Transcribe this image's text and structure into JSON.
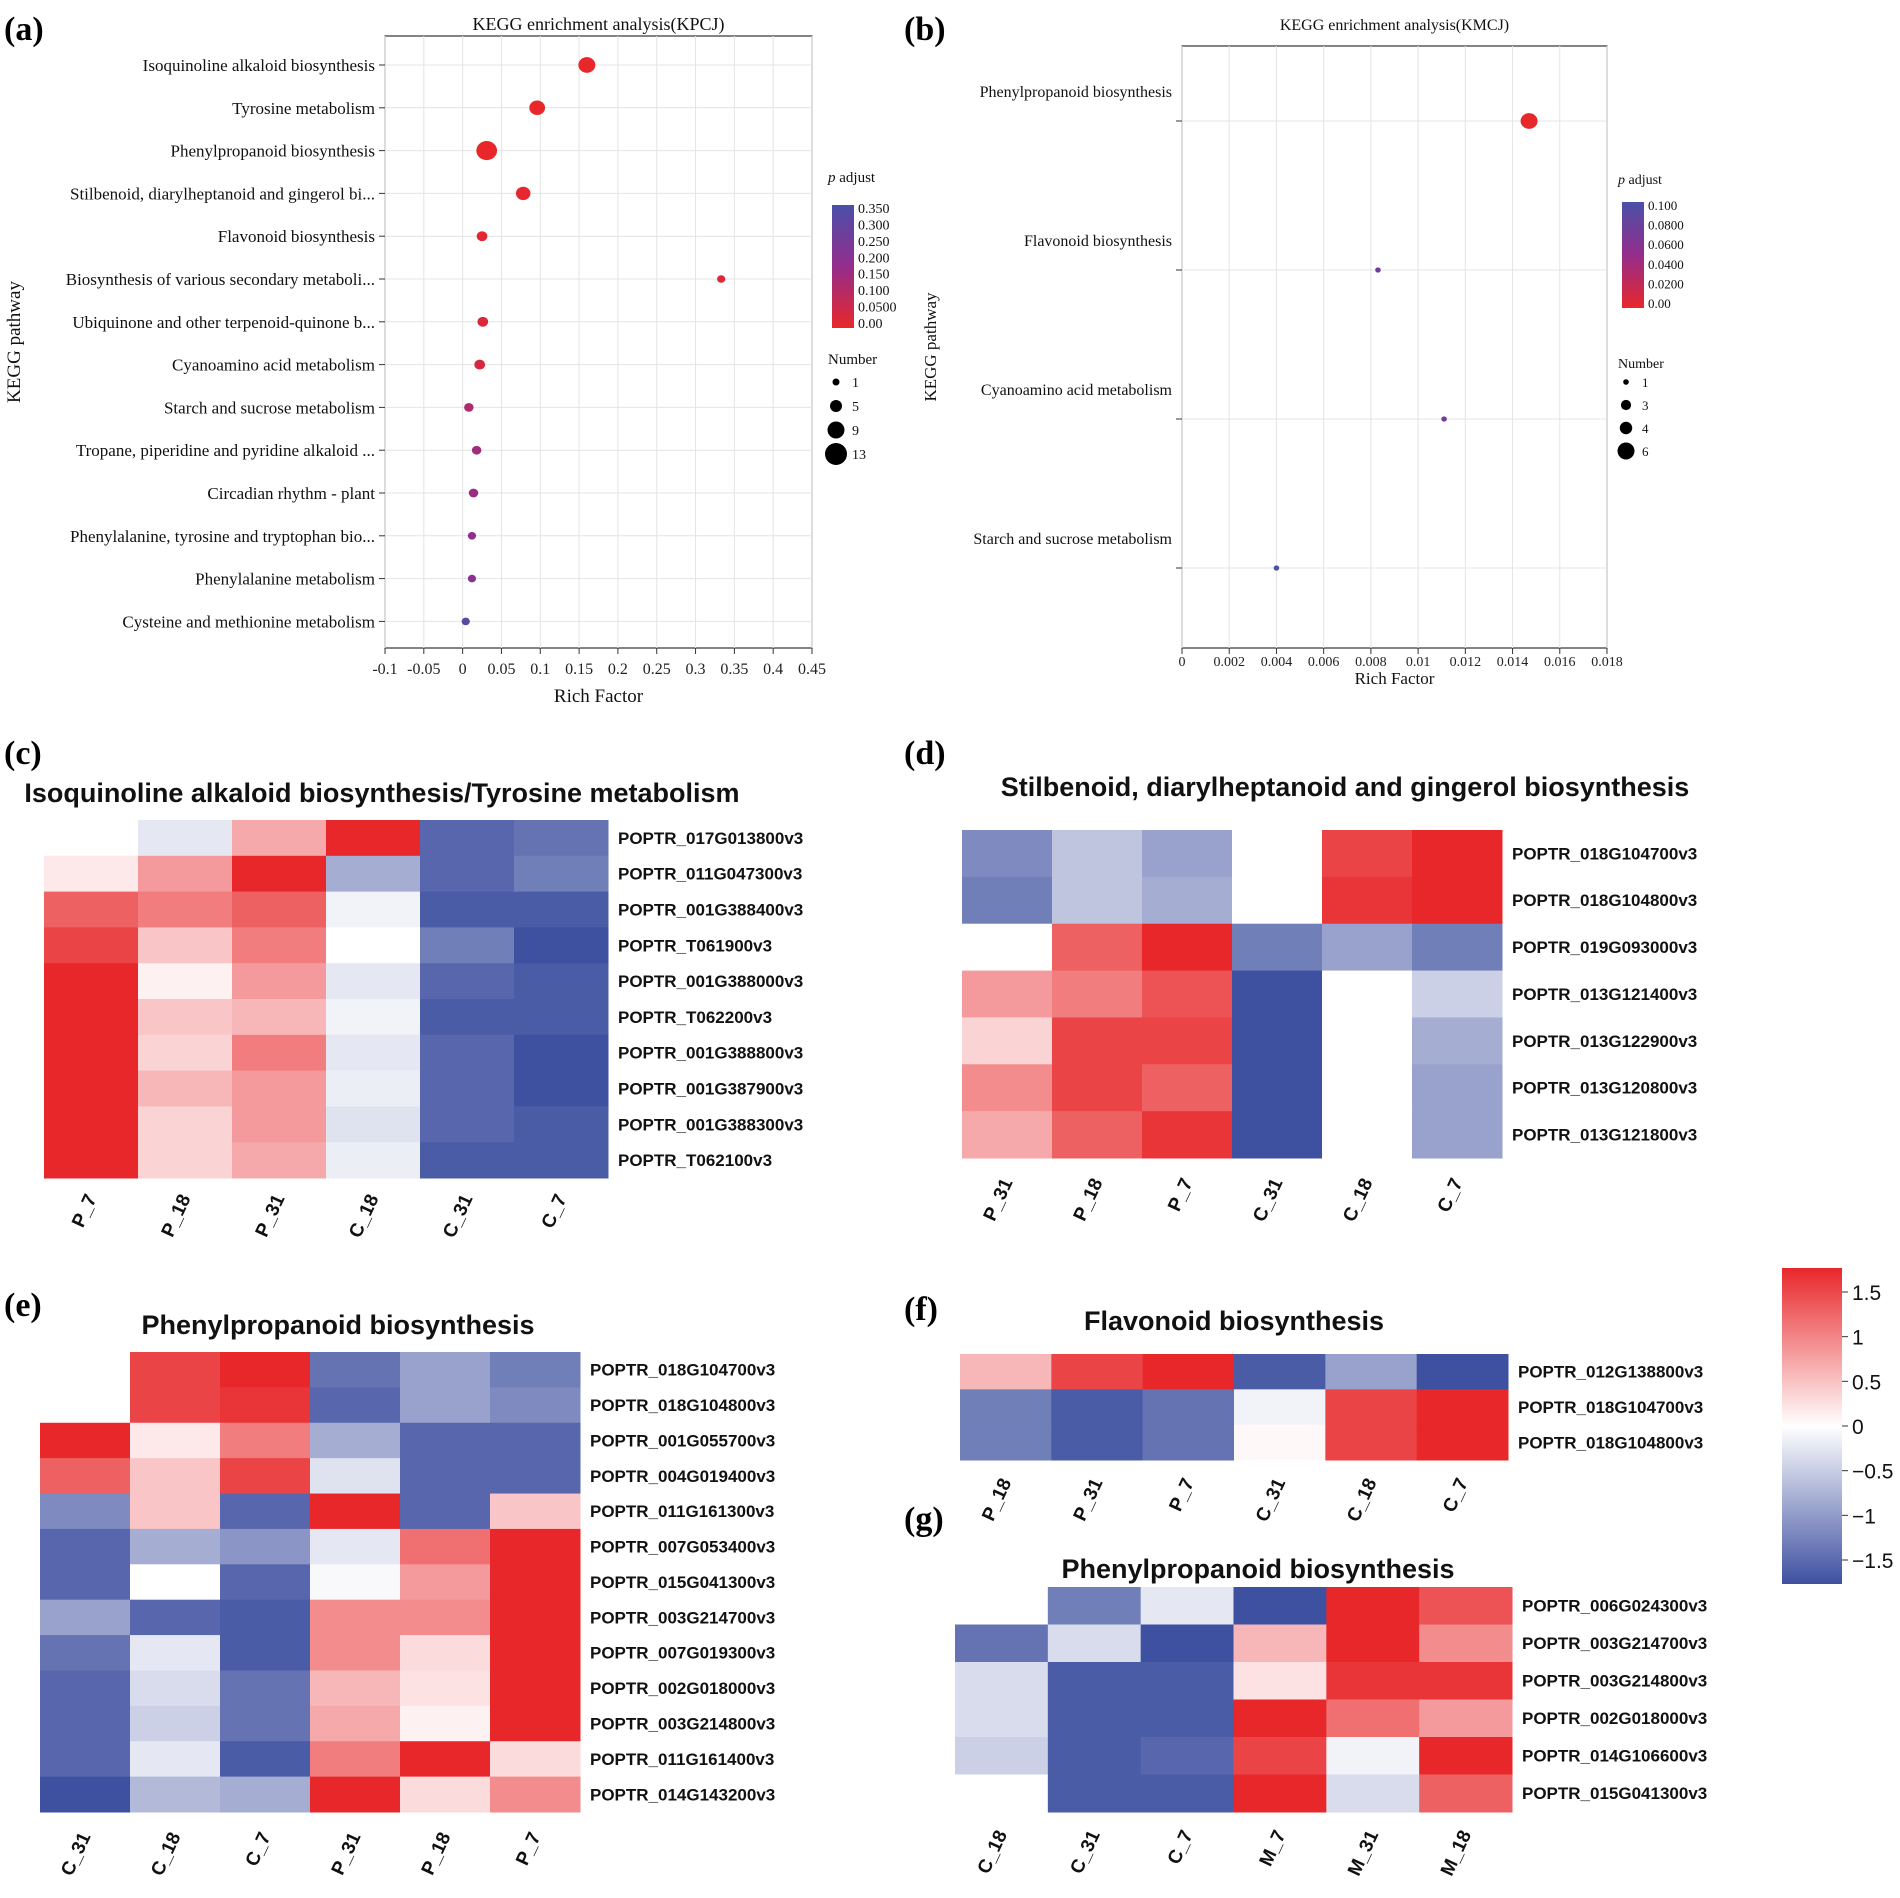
{
  "colors": {
    "red": "#e8272a",
    "white": "#ffffff",
    "blue": "#3e50a0",
    "purple": "#7a3f9e"
  },
  "panel_labels": [
    "(a)",
    "(b)",
    "(c)",
    "(d)",
    "(e)",
    "(f)",
    "(g)"
  ],
  "chart_data": [
    {
      "id": "a",
      "type": "scatter",
      "title": "KEGG enrichment analysis(KPCJ)",
      "xlabel": "Rich Factor",
      "ylabel": "KEGG pathway",
      "xlim": [
        -0.1,
        0.45
      ],
      "xticks": [
        "-0.1",
        "-0.05",
        "0",
        "0.05",
        "0.1",
        "0.15",
        "0.2",
        "0.25",
        "0.3",
        "0.35",
        "0.4",
        "0.45"
      ],
      "categories": [
        "Isoquinoline alkaloid biosynthesis",
        "Tyrosine metabolism",
        "Phenylpropanoid biosynthesis",
        "Stilbenoid, diarylheptanoid and gingerol bi...",
        "Flavonoid biosynthesis",
        "Biosynthesis of various secondary metaboli...",
        "Ubiquinone and other terpenoid-quinone b...",
        "Cyanoamino acid metabolism",
        "Starch and sucrose metabolism",
        "Tropane, piperidine and pyridine alkaloid ...",
        "Circadian rhythm - plant",
        "Phenylalanine, tyrosine and tryptophan bio...",
        "Phenylalanine metabolism",
        "Cysteine and methionine metabolism"
      ],
      "x": [
        0.16,
        0.096,
        0.031,
        0.078,
        0.025,
        0.333,
        0.026,
        0.022,
        0.008,
        0.018,
        0.014,
        0.012,
        0.012,
        0.004
      ],
      "number": [
        9,
        8,
        12,
        7,
        4,
        2,
        4,
        4,
        3,
        3,
        3,
        2,
        2,
        2
      ],
      "padjust": [
        0.0,
        0.0,
        0.0,
        0.005,
        0.01,
        0.02,
        0.03,
        0.04,
        0.12,
        0.15,
        0.16,
        0.18,
        0.2,
        0.32
      ],
      "color_legend": {
        "title_italic": "p",
        "title_rest": " adjust",
        "ticks": [
          "0.350",
          "0.300",
          "0.250",
          "0.200",
          "0.150",
          "0.100",
          "0.0500",
          "0.00"
        ]
      },
      "size_legend": {
        "title": "Number",
        "labels": [
          "1",
          "5",
          "9",
          "13"
        ],
        "values": [
          1,
          5,
          9,
          13
        ]
      }
    },
    {
      "id": "b",
      "type": "scatter",
      "title": "KEGG enrichment analysis(KMCJ)",
      "xlabel": "Rich Factor",
      "ylabel": "KEGG pathway",
      "xlim": [
        0,
        0.018
      ],
      "xticks": [
        "0",
        "0.002",
        "0.004",
        "0.006",
        "0.008",
        "0.01",
        "0.012",
        "0.014",
        "0.016",
        "0.018"
      ],
      "categories": [
        "Phenylpropanoid biosynthesis",
        "Flavonoid biosynthesis",
        "Cyanoamino acid metabolism",
        "Starch and sucrose metabolism"
      ],
      "x": [
        0.0147,
        0.0083,
        0.0111,
        0.004
      ],
      "number": [
        6,
        1,
        1,
        1
      ],
      "padjust": [
        0.0,
        0.075,
        0.075,
        0.1
      ],
      "color_legend": {
        "title_italic": "p",
        "title_rest": " adjust",
        "ticks": [
          "0.100",
          "0.0800",
          "0.0600",
          "0.0400",
          "0.0200",
          "0.00"
        ]
      },
      "size_legend": {
        "title": "Number",
        "labels": [
          "1",
          "3",
          "4",
          "6"
        ],
        "values": [
          1,
          3,
          4,
          6
        ]
      }
    },
    {
      "id": "c",
      "type": "heatmap",
      "title": "Isoquinoline alkaloid biosynthesis/Tyrosine metabolism",
      "columns": [
        "P_7",
        "P_18",
        "P_31",
        "C_18",
        "C_31",
        "C_7"
      ],
      "rows": [
        "POPTR_017G013800v3",
        "POPTR_011G047300v3",
        "POPTR_001G388400v3",
        "POPTR_T061900v3",
        "POPTR_001G388000v3",
        "POPTR_T062200v3",
        "POPTR_001G388800v3",
        "POPTR_001G387900v3",
        "POPTR_001G388300v3",
        "POPTR_T062100v3"
      ],
      "values": [
        [
          0,
          -0.2,
          0.6,
          1.6,
          -1.3,
          -1.2
        ],
        [
          0.15,
          0.7,
          1.6,
          -0.7,
          -1.3,
          -1.1
        ],
        [
          1.1,
          0.9,
          1.1,
          -0.1,
          -1.4,
          -1.4
        ],
        [
          1.3,
          0.4,
          0.9,
          0,
          -1.1,
          -1.5
        ],
        [
          1.6,
          0.1,
          0.7,
          -0.2,
          -1.3,
          -1.4
        ],
        [
          1.6,
          0.4,
          0.5,
          -0.1,
          -1.4,
          -1.4
        ],
        [
          1.5,
          0.3,
          0.9,
          -0.2,
          -1.3,
          -1.5
        ],
        [
          1.5,
          0.5,
          0.7,
          -0.15,
          -1.3,
          -1.5
        ],
        [
          1.6,
          0.3,
          0.7,
          -0.25,
          -1.3,
          -1.4
        ],
        [
          1.6,
          0.3,
          0.6,
          -0.15,
          -1.4,
          -1.4
        ]
      ]
    },
    {
      "id": "d",
      "type": "heatmap",
      "title": "Stilbenoid, diarylheptanoid and gingerol biosynthesis",
      "columns": [
        "P_31",
        "P_18",
        "P_7",
        "C_31",
        "C_18",
        "C_7"
      ],
      "rows": [
        "POPTR_018G104700v3",
        "POPTR_018G104800v3",
        "POPTR_019G093000v3",
        "POPTR_013G121400v3",
        "POPTR_013G122900v3",
        "POPTR_013G120800v3",
        "POPTR_013G121800v3"
      ],
      "values": [
        [
          -1.0,
          -0.5,
          -0.8,
          0,
          1.3,
          1.6
        ],
        [
          -1.1,
          -0.5,
          -0.7,
          0,
          1.4,
          1.6
        ],
        [
          0,
          1.1,
          1.6,
          -1.1,
          -0.8,
          -1.1
        ],
        [
          0.7,
          0.9,
          1.2,
          -1.5,
          0,
          -0.4
        ],
        [
          0.3,
          1.3,
          1.3,
          -1.5,
          0,
          -0.7
        ],
        [
          0.8,
          1.3,
          1.1,
          -1.5,
          0,
          -0.8
        ],
        [
          0.6,
          1.1,
          1.4,
          -1.5,
          0,
          -0.8
        ]
      ]
    },
    {
      "id": "e",
      "type": "heatmap",
      "title": "Phenylpropanoid biosynthesis",
      "columns": [
        "C_31",
        "C_18",
        "C_7",
        "P_31",
        "P_18",
        "P_7"
      ],
      "rows": [
        "POPTR_018G104700v3",
        "POPTR_018G104800v3",
        "POPTR_001G055700v3",
        "POPTR_004G019400v3",
        "POPTR_011G161300v3",
        "POPTR_007G053400v3",
        "POPTR_015G041300v3",
        "POPTR_003G214700v3",
        "POPTR_007G019300v3",
        "POPTR_002G018000v3",
        "POPTR_003G214800v3",
        "POPTR_011G161400v3",
        "POPTR_014G143200v3"
      ],
      "values": [
        [
          0,
          1.3,
          1.6,
          -1.2,
          -0.8,
          -1.1
        ],
        [
          0,
          1.3,
          1.4,
          -1.3,
          -0.8,
          -1.0
        ],
        [
          1.6,
          0.15,
          0.9,
          -0.7,
          -1.3,
          -1.3
        ],
        [
          1.1,
          0.4,
          1.3,
          -0.25,
          -1.3,
          -1.3
        ],
        [
          -1.0,
          0.4,
          -1.3,
          1.6,
          -1.3,
          0.4
        ],
        [
          -1.3,
          -0.7,
          -0.9,
          -0.2,
          1.0,
          1.6
        ],
        [
          -1.3,
          0,
          -1.3,
          -0.05,
          0.7,
          1.6
        ],
        [
          -0.8,
          -1.3,
          -1.4,
          0.8,
          0.8,
          1.5
        ],
        [
          -1.2,
          -0.2,
          -1.4,
          0.8,
          0.25,
          1.6
        ],
        [
          -1.3,
          -0.3,
          -1.2,
          0.5,
          0.2,
          1.6
        ],
        [
          -1.3,
          -0.4,
          -1.2,
          0.6,
          0.1,
          1.6
        ],
        [
          -1.3,
          -0.2,
          -1.4,
          0.9,
          1.6,
          0.25
        ],
        [
          -1.5,
          -0.6,
          -0.7,
          1.6,
          0.25,
          0.8
        ]
      ]
    },
    {
      "id": "f",
      "type": "heatmap",
      "title": "Flavonoid biosynthesis",
      "columns": [
        "P_18",
        "P_31",
        "P_7",
        "C_31",
        "C_18",
        "C_7"
      ],
      "rows": [
        "POPTR_012G138800v3",
        "POPTR_018G104700v3",
        "POPTR_018G104800v3"
      ],
      "values": [
        [
          0.5,
          1.3,
          1.6,
          -1.4,
          -0.8,
          -1.5
        ],
        [
          -1.1,
          -1.4,
          -1.2,
          -0.1,
          1.3,
          1.6
        ],
        [
          -1.1,
          -1.4,
          -1.2,
          0.05,
          1.3,
          1.6
        ]
      ]
    },
    {
      "id": "g",
      "type": "heatmap",
      "title": "Phenylpropanoid biosynthesis",
      "columns": [
        "C_18",
        "C_31",
        "C_7",
        "M_7",
        "M_31",
        "M_18"
      ],
      "rows": [
        "POPTR_006G024300v3",
        "POPTR_003G214700v3",
        "POPTR_003G214800v3",
        "POPTR_002G018000v3",
        "POPTR_014G106600v3",
        "POPTR_015G041300v3"
      ],
      "values": [
        [
          0,
          -1.1,
          -0.2,
          -1.5,
          1.6,
          1.2
        ],
        [
          -1.2,
          -0.3,
          -1.5,
          0.5,
          1.6,
          0.8
        ],
        [
          -0.3,
          -1.4,
          -1.4,
          0.2,
          1.4,
          1.4
        ],
        [
          -0.3,
          -1.4,
          -1.4,
          1.5,
          1.0,
          0.7
        ],
        [
          -0.4,
          -1.4,
          -1.3,
          1.3,
          -0.1,
          1.6
        ],
        [
          0,
          -1.4,
          -1.4,
          1.6,
          -0.3,
          1.1
        ]
      ]
    }
  ],
  "heatmap_colorbar": {
    "ticks": [
      "1.5",
      "1",
      "0.5",
      "0",
      "−0.5",
      "−1",
      "−1.5"
    ],
    "values": [
      1.5,
      1,
      0.5,
      0,
      -0.5,
      -1,
      -1.5
    ]
  }
}
